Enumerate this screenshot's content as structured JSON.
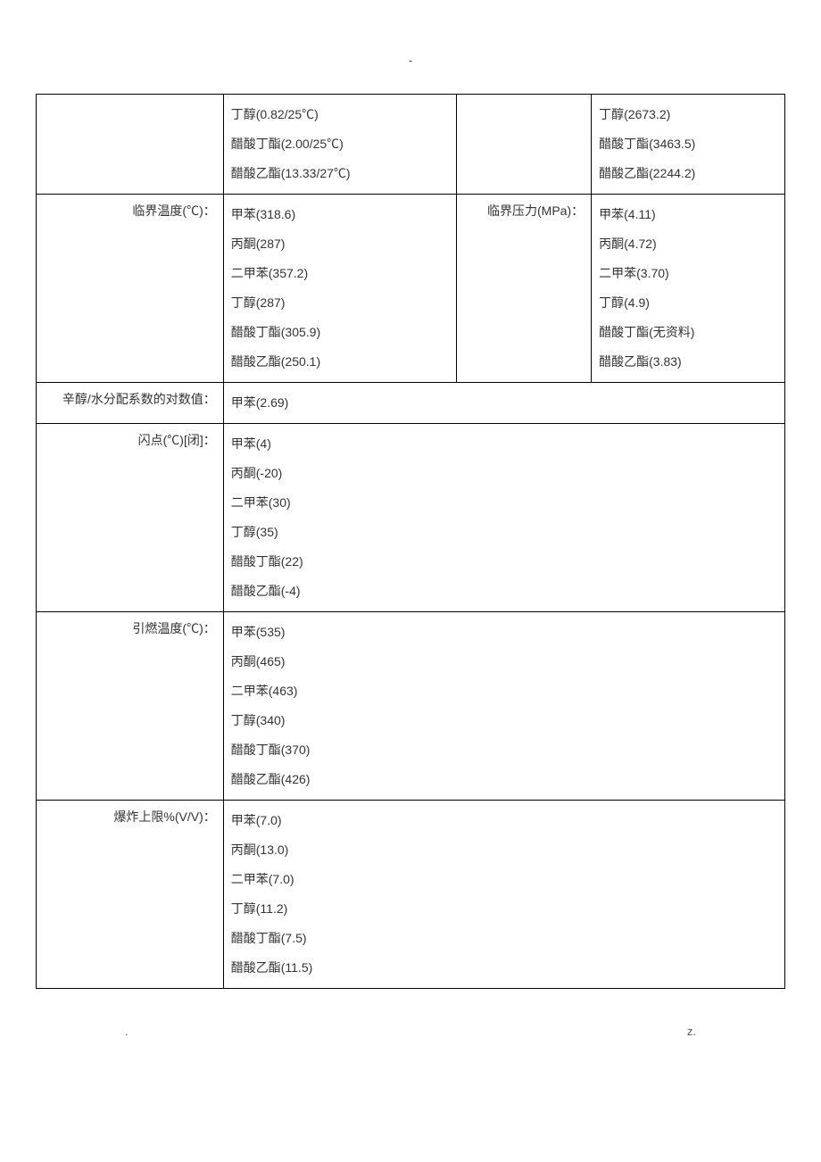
{
  "header_dash": "-",
  "rows": [
    {
      "label1": "",
      "values1": [
        "丁醇(0.82/25℃)",
        "醋酸丁酯(2.00/25℃)",
        "醋酸乙酯(13.33/27℃)"
      ],
      "label2": "",
      "values2": [
        "丁醇(2673.2)",
        "醋酸丁酯(3463.5)",
        "醋酸乙酯(2244.2)"
      ],
      "fourCol": true
    },
    {
      "label1": "临界温度(℃)：",
      "values1": [
        "甲苯(318.6)",
        "丙酮(287)",
        "二甲苯(357.2)",
        "丁醇(287)",
        "醋酸丁酯(305.9)",
        "醋酸乙酯(250.1)"
      ],
      "label2": "临界压力(MPa)：",
      "values2": [
        "甲苯(4.11)",
        "丙酮(4.72)",
        "二甲苯(3.70)",
        "丁醇(4.9)",
        "醋酸丁酯(无资料)",
        "醋酸乙酯(3.83)"
      ],
      "fourCol": true
    },
    {
      "label1": "辛醇/水分配系数的对数值：",
      "values1": [
        "甲苯(2.69)"
      ],
      "fourCol": false
    },
    {
      "label1": "闪点(℃)[闭]：",
      "values1": [
        "甲苯(4)",
        "丙酮(-20)",
        "二甲苯(30)",
        "丁醇(35)",
        "醋酸丁酯(22)",
        "醋酸乙酯(-4)"
      ],
      "fourCol": false
    },
    {
      "label1": "引燃温度(℃)：",
      "values1": [
        "甲苯(535)",
        "丙酮(465)",
        "二甲苯(463)",
        "丁醇(340)",
        "醋酸丁酯(370)",
        "醋酸乙酯(426)"
      ],
      "fourCol": false
    },
    {
      "label1": "爆炸上限%(V/V)：",
      "values1": [
        "甲苯(7.0)",
        "丙酮(13.0)",
        "二甲苯(7.0)",
        "丁醇(11.2)",
        "醋酸丁酯(7.5)",
        "醋酸乙酯(11.5)"
      ],
      "fourCol": false
    }
  ],
  "footer_left": ".",
  "footer_right": "z."
}
